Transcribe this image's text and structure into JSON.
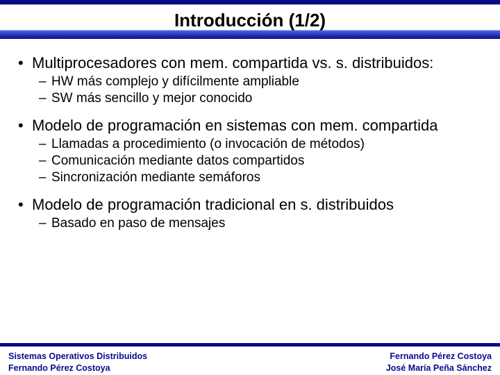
{
  "title": "Introducción (1/2)",
  "bullets": [
    {
      "text": "Multiprocesadores con mem. compartida vs. s. distribuidos:",
      "sub": [
        "HW más complejo y difícilmente ampliable",
        "SW más sencillo y mejor conocido"
      ]
    },
    {
      "text": "Modelo de programación en sistemas con mem. compartida",
      "sub": [
        "Llamadas a procedimiento (o invocación de métodos)",
        "Comunicación mediante datos compartidos",
        "Sincronización mediante semáforos"
      ]
    },
    {
      "text": "Modelo de programación tradicional en s. distribuidos",
      "sub": [
        "Basado en paso de mensajes"
      ]
    }
  ],
  "footer": {
    "left_line1": "Sistemas Operativos Distribuidos",
    "left_line2": "Fernando Pérez Costoya",
    "right_line1": "Fernando Pérez Costoya",
    "right_line2": "José María Peña Sánchez"
  },
  "colors": {
    "brand": "#0a0b8c",
    "text": "#000000",
    "background": "#ffffff"
  }
}
